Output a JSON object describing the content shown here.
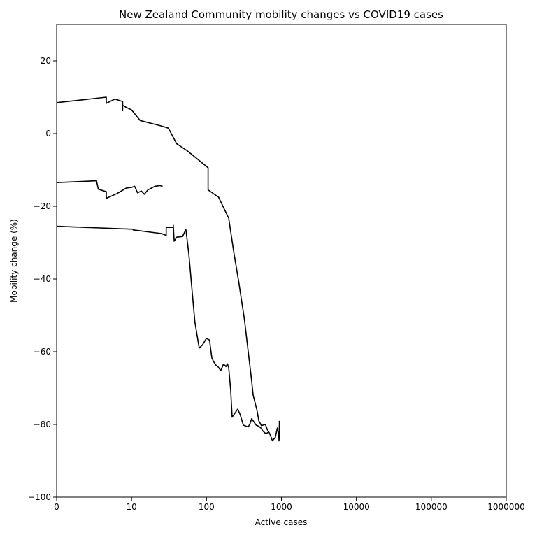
{
  "chart_data": {
    "type": "line",
    "title": "New Zealand Community mobility changes vs COVID19 cases",
    "xlabel": "Active cases",
    "ylabel": "Mobility change (%)",
    "x_scale": "log",
    "xlim": [
      1,
      1000000
    ],
    "ylim": [
      -100,
      30
    ],
    "x_ticks": [
      {
        "value": 1,
        "label": "0"
      },
      {
        "value": 10,
        "label": "10"
      },
      {
        "value": 100,
        "label": "100"
      },
      {
        "value": 1000,
        "label": "1000"
      },
      {
        "value": 10000,
        "label": "10000"
      },
      {
        "value": 100000,
        "label": "100000"
      },
      {
        "value": 1000000,
        "label": "1000000"
      }
    ],
    "y_ticks": [
      {
        "value": 20,
        "label": "20"
      },
      {
        "value": 0,
        "label": "0"
      },
      {
        "value": -20,
        "label": "−20"
      },
      {
        "value": -40,
        "label": "−40"
      },
      {
        "value": -60,
        "label": "−60"
      },
      {
        "value": -80,
        "label": "−80"
      },
      {
        "value": -100,
        "label": "−100"
      }
    ],
    "grid": false,
    "line_color": "#000000",
    "series": [
      {
        "x": [
          1,
          4.6,
          4.6,
          6,
          7.6,
          7.6,
          7.6,
          8.5,
          10,
          13,
          24,
          31,
          40,
          56,
          105,
          105,
          145,
          198,
          230,
          270,
          320,
          360,
          395,
          420,
          470,
          500,
          540,
          610,
          650,
          690,
          760,
          830,
          880,
          900,
          920,
          930,
          940
        ],
        "y": [
          8.5,
          10,
          8.3,
          9.5,
          8.8,
          6.3,
          7.8,
          7.2,
          6.5,
          3.6,
          2.2,
          1.5,
          -2.8,
          -4.8,
          -9.4,
          -15.5,
          -17.5,
          -23.3,
          -32.3,
          -41,
          -51,
          -60,
          -67,
          -72,
          -76,
          -79,
          -80.3,
          -80,
          -81.5,
          -82.3,
          -84.5,
          -83.5,
          -81,
          -82,
          -83,
          -84.5,
          -79
        ]
      },
      {
        "x": [
          1,
          3.4,
          3.6,
          4.6,
          4.6,
          6.4,
          8.5,
          10,
          11,
          12,
          13.5,
          14.8,
          16.5,
          20.5,
          23.5,
          26
        ],
        "y": [
          -13.5,
          -13,
          -15.3,
          -16,
          -17.8,
          -16.5,
          -15,
          -14.8,
          -14.5,
          -16.3,
          -15.8,
          -16.7,
          -15.5,
          -14.5,
          -14.3,
          -14.5
        ]
      },
      {
        "x": [
          1,
          10.5,
          10.5,
          25,
          29,
          29,
          36,
          36,
          37,
          40,
          48,
          50,
          53,
          58,
          65,
          70,
          80,
          88,
          100,
          110,
          112,
          118,
          125,
          135,
          142,
          155,
          168,
          175,
          182,
          190,
          198,
          210,
          220,
          260,
          280,
          310,
          340,
          360,
          380,
          400,
          430,
          460,
          500,
          540,
          560,
          600,
          630,
          680
        ],
        "y": [
          -25.5,
          -26.3,
          -26.5,
          -27.5,
          -28,
          -25.8,
          -25.8,
          -25.2,
          -29.6,
          -28.5,
          -28.3,
          -27.5,
          -26.3,
          -33,
          -44.5,
          -51.8,
          -59,
          -58.2,
          -56.3,
          -56.8,
          -58.3,
          -61.7,
          -62.8,
          -63.8,
          -64.1,
          -65.2,
          -63.5,
          -63.7,
          -64.1,
          -63.3,
          -64.4,
          -70.5,
          -78,
          -75.8,
          -77.2,
          -80.2,
          -80.5,
          -80.7,
          -79.8,
          -78.4,
          -79.3,
          -80.2,
          -80.5,
          -81.1,
          -81.7,
          -82.3,
          -82.5,
          -82
        ]
      }
    ]
  }
}
